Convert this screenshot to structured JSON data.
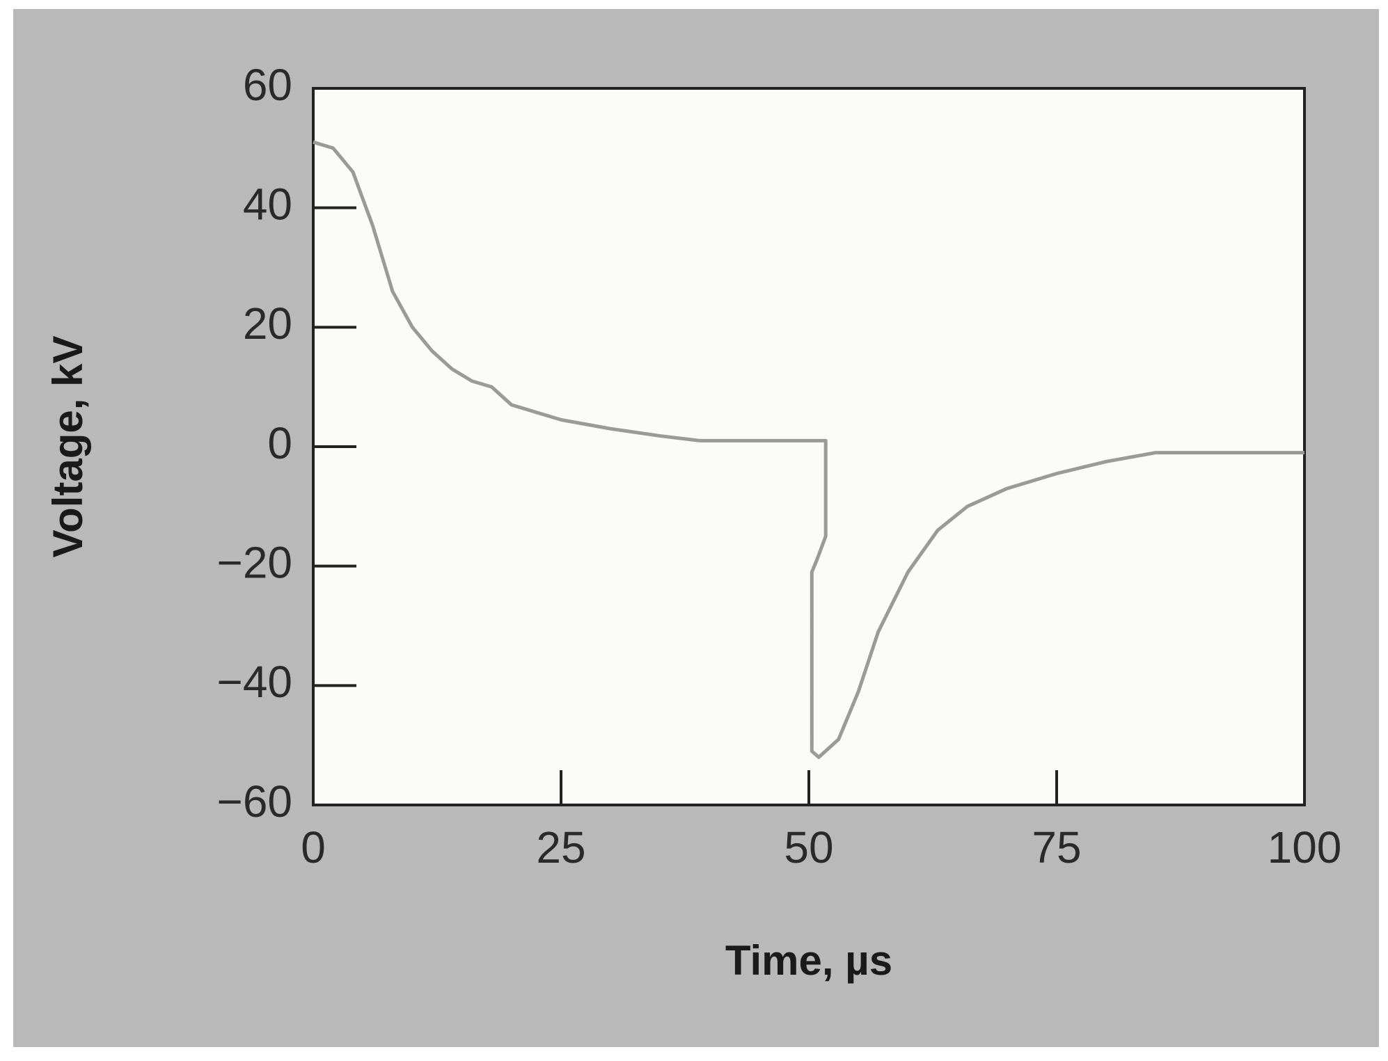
{
  "chart_data": {
    "type": "line",
    "xlabel": "Time, µs",
    "ylabel": "Voltage, kV",
    "x": [
      0,
      2,
      4,
      6,
      8,
      10,
      12,
      14,
      16,
      18,
      19,
      20,
      25,
      30,
      35,
      39,
      51.7,
      51.7,
      50.8,
      50.3,
      50.3,
      51,
      53,
      55,
      57,
      60,
      63,
      66,
      70,
      75,
      80,
      85,
      100
    ],
    "values": [
      51,
      50,
      46,
      37,
      26,
      20,
      16,
      13,
      11,
      10,
      8.5,
      7,
      4.5,
      3,
      1.8,
      1,
      1,
      -15,
      -19,
      -21,
      -51,
      -52,
      -49,
      -41,
      -31,
      -21,
      -14,
      -10,
      -7,
      -4.5,
      -2.5,
      -1,
      -1
    ],
    "color": "#9a9a9a",
    "xlim": [
      0,
      100
    ],
    "xticks": [
      0,
      25,
      50,
      75,
      100
    ],
    "ylim": [
      -60,
      60
    ],
    "yticks": [
      {
        "value": -60,
        "label": "−60"
      },
      {
        "value": -40,
        "label": "−40"
      },
      {
        "value": -20,
        "label": "−20"
      },
      0,
      20,
      40,
      60
    ]
  }
}
